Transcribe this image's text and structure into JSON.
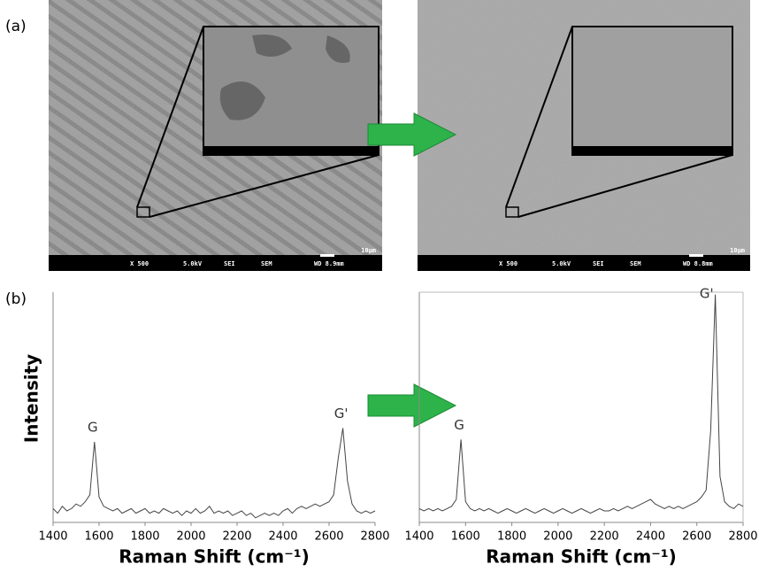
{
  "panel_labels": [
    "(a)",
    "(b)"
  ],
  "sem": [
    {
      "scale": "10µm",
      "info": [
        "X 500",
        "5.0kV",
        "SEI",
        "SEM",
        "WD 8.9mm"
      ]
    },
    {
      "scale": "10µm",
      "info": [
        "X 500",
        "5.0kV",
        "SEI",
        "SEM",
        "WD 8.8mm"
      ]
    }
  ],
  "chart_data": [
    {
      "type": "line",
      "xlabel": "Raman Shift (cm⁻¹)",
      "ylabel": "Intensity",
      "color": "#444444",
      "xlim": [
        1400,
        2800
      ],
      "xticks": [
        1400,
        1600,
        1800,
        2000,
        2200,
        2400,
        2600,
        2800
      ],
      "ylim": [
        0,
        100
      ],
      "annotations": [
        {
          "text": "G",
          "x": 1580
        },
        {
          "text": "G'",
          "x": 2660
        }
      ],
      "x": [
        1400,
        1420,
        1440,
        1460,
        1480,
        1500,
        1520,
        1540,
        1560,
        1580,
        1600,
        1620,
        1640,
        1660,
        1680,
        1700,
        1720,
        1740,
        1760,
        1780,
        1800,
        1820,
        1840,
        1860,
        1880,
        1900,
        1920,
        1940,
        1960,
        1980,
        2000,
        2020,
        2040,
        2060,
        2080,
        2100,
        2120,
        2140,
        2160,
        2180,
        2200,
        2220,
        2240,
        2260,
        2280,
        2300,
        2320,
        2340,
        2360,
        2380,
        2400,
        2420,
        2440,
        2460,
        2480,
        2500,
        2520,
        2540,
        2560,
        2580,
        2600,
        2620,
        2640,
        2660,
        2680,
        2700,
        2720,
        2740,
        2760,
        2780,
        2800
      ],
      "values": [
        6,
        4,
        7,
        5,
        6,
        8,
        7,
        9,
        12,
        35,
        11,
        7,
        6,
        5,
        6,
        4,
        5,
        6,
        4,
        5,
        6,
        4,
        5,
        4,
        6,
        5,
        4,
        5,
        3,
        5,
        4,
        6,
        4,
        5,
        7,
        4,
        5,
        4,
        5,
        3,
        4,
        5,
        3,
        4,
        2,
        3,
        4,
        3,
        4,
        3,
        5,
        6,
        4,
        6,
        7,
        6,
        7,
        8,
        7,
        8,
        9,
        12,
        28,
        41,
        18,
        8,
        5,
        4,
        5,
        4,
        5
      ]
    },
    {
      "type": "line",
      "xlabel": "Raman Shift (cm⁻¹)",
      "color": "#444444",
      "xlim": [
        1400,
        2800
      ],
      "xticks": [
        1400,
        1600,
        1800,
        2000,
        2200,
        2400,
        2600,
        2800
      ],
      "ylim": [
        0,
        100
      ],
      "annotations": [
        {
          "text": "G",
          "x": 1580
        },
        {
          "text": "G'",
          "x": 2680
        }
      ],
      "x": [
        1400,
        1420,
        1440,
        1460,
        1480,
        1500,
        1520,
        1540,
        1560,
        1580,
        1600,
        1620,
        1640,
        1660,
        1680,
        1700,
        1720,
        1740,
        1760,
        1780,
        1800,
        1820,
        1840,
        1860,
        1880,
        1900,
        1920,
        1940,
        1960,
        1980,
        2000,
        2020,
        2040,
        2060,
        2080,
        2100,
        2120,
        2140,
        2160,
        2180,
        2200,
        2220,
        2240,
        2260,
        2280,
        2300,
        2320,
        2340,
        2360,
        2380,
        2400,
        2420,
        2440,
        2460,
        2480,
        2500,
        2520,
        2540,
        2560,
        2580,
        2600,
        2620,
        2640,
        2660,
        2680,
        2700,
        2720,
        2740,
        2760,
        2780,
        2800
      ],
      "values": [
        6,
        5,
        6,
        5,
        6,
        5,
        6,
        7,
        10,
        36,
        9,
        6,
        5,
        6,
        5,
        6,
        5,
        4,
        5,
        6,
        5,
        4,
        5,
        6,
        5,
        4,
        5,
        6,
        5,
        4,
        5,
        6,
        5,
        4,
        5,
        6,
        5,
        4,
        5,
        6,
        5,
        5,
        6,
        5,
        6,
        7,
        6,
        7,
        8,
        9,
        10,
        8,
        7,
        6,
        7,
        6,
        7,
        6,
        7,
        8,
        9,
        11,
        14,
        40,
        99,
        20,
        9,
        7,
        6,
        8,
        7
      ]
    }
  ]
}
